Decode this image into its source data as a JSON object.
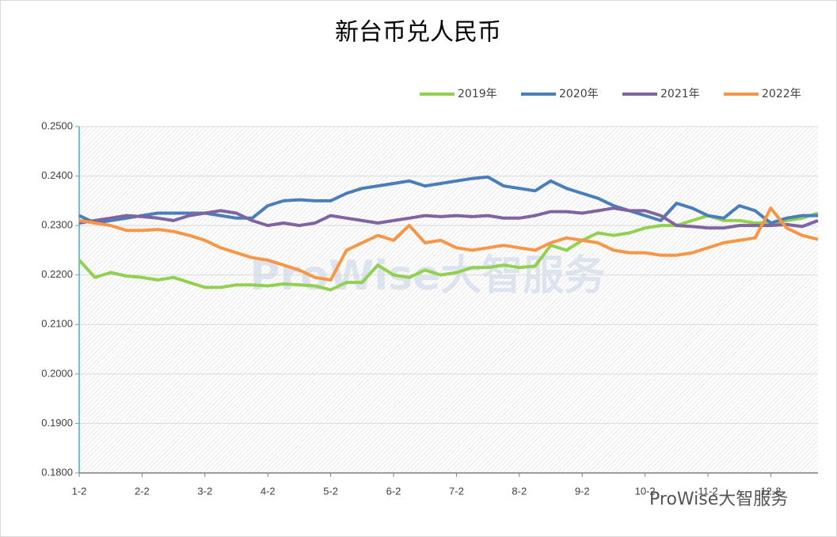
{
  "chart_data": {
    "type": "line",
    "title": "新台币兑人民币",
    "watermark": "ProWise大智服务",
    "categories": [
      "1-2",
      null,
      null,
      null,
      "2-2",
      null,
      null,
      null,
      "3-2",
      null,
      null,
      null,
      "4-2",
      null,
      null,
      null,
      "5-2",
      null,
      null,
      null,
      "6-2",
      null,
      null,
      null,
      "7-2",
      null,
      null,
      null,
      "8-2",
      null,
      null,
      null,
      "9-2",
      null,
      null,
      null,
      "10-2",
      null,
      null,
      null,
      "11-2",
      null,
      null,
      null,
      "12-2",
      null,
      null,
      null
    ],
    "series": [
      {
        "name": "2019年",
        "color": "#92d050",
        "values": [
          0.223,
          0.2195,
          0.2205,
          0.2198,
          0.2195,
          0.219,
          0.2195,
          0.2185,
          0.2175,
          0.2175,
          0.218,
          0.218,
          0.2178,
          0.2182,
          0.218,
          0.2178,
          0.217,
          0.2185,
          0.2185,
          0.222,
          0.22,
          0.2195,
          0.221,
          0.22,
          0.2205,
          0.2215,
          0.2215,
          0.222,
          0.2215,
          0.2218,
          0.226,
          0.225,
          0.227,
          0.2285,
          0.228,
          0.2285,
          0.2295,
          0.23,
          0.23,
          0.231,
          0.232,
          0.231,
          0.231,
          0.2305,
          0.2305,
          0.231,
          0.2315,
          0.2325
        ]
      },
      {
        "name": "2020年",
        "color": "#4a7ebb",
        "values": [
          0.232,
          0.2305,
          0.231,
          0.2315,
          0.232,
          0.2325,
          0.2325,
          0.2325,
          0.2325,
          0.232,
          0.2315,
          0.2315,
          0.234,
          0.235,
          0.2352,
          0.235,
          0.235,
          0.2365,
          0.2375,
          0.238,
          0.2385,
          0.239,
          0.238,
          0.2385,
          0.239,
          0.2395,
          0.2398,
          0.238,
          0.2375,
          0.237,
          0.239,
          0.2375,
          0.2365,
          0.2355,
          0.234,
          0.233,
          0.232,
          0.231,
          0.2345,
          0.2335,
          0.232,
          0.2315,
          0.234,
          0.233,
          0.2305,
          0.2315,
          0.232,
          0.232
        ]
      },
      {
        "name": "2021年",
        "color": "#8064a2",
        "values": [
          0.2305,
          0.231,
          0.2315,
          0.232,
          0.2318,
          0.2315,
          0.231,
          0.232,
          0.2325,
          0.233,
          0.2325,
          0.231,
          0.23,
          0.2305,
          0.23,
          0.2305,
          0.232,
          0.2315,
          0.231,
          0.2305,
          0.231,
          0.2315,
          0.232,
          0.2318,
          0.232,
          0.2318,
          0.232,
          0.2315,
          0.2315,
          0.232,
          0.2328,
          0.2328,
          0.2325,
          0.233,
          0.2335,
          0.233,
          0.233,
          0.232,
          0.23,
          0.2298,
          0.2295,
          0.2295,
          0.23,
          0.23,
          0.23,
          0.2302,
          0.2298,
          0.231
        ]
      },
      {
        "name": "2022年",
        "color": "#f79646",
        "values": [
          0.231,
          0.2305,
          0.23,
          0.229,
          0.229,
          0.2292,
          0.2288,
          0.228,
          0.227,
          0.2255,
          0.2245,
          0.2235,
          0.223,
          0.222,
          0.221,
          0.2195,
          0.219,
          0.225,
          0.2265,
          0.228,
          0.227,
          0.23,
          0.2265,
          0.227,
          0.2255,
          0.225,
          0.2255,
          0.226,
          0.2255,
          0.225,
          0.2265,
          0.2275,
          0.227,
          0.2265,
          0.225,
          0.2245,
          0.2245,
          0.224,
          0.224,
          0.2245,
          0.2255,
          0.2265,
          0.227,
          0.2275,
          0.2335,
          0.2295,
          0.228,
          0.2272
        ]
      }
    ],
    "ylim": [
      0.18,
      0.25
    ],
    "yticks": [
      {
        "value": 0.18,
        "label": "0.1800"
      },
      {
        "value": 0.19,
        "label": "0.1900"
      },
      {
        "value": 0.2,
        "label": "0.2000"
      },
      {
        "value": 0.21,
        "label": "0.2100"
      },
      {
        "value": 0.22,
        "label": "0.2200"
      },
      {
        "value": 0.23,
        "label": "0.2300"
      },
      {
        "value": 0.24,
        "label": "0.2400"
      },
      {
        "value": 0.25,
        "label": "0.2500"
      }
    ],
    "grid": true,
    "legend": "top-right"
  }
}
